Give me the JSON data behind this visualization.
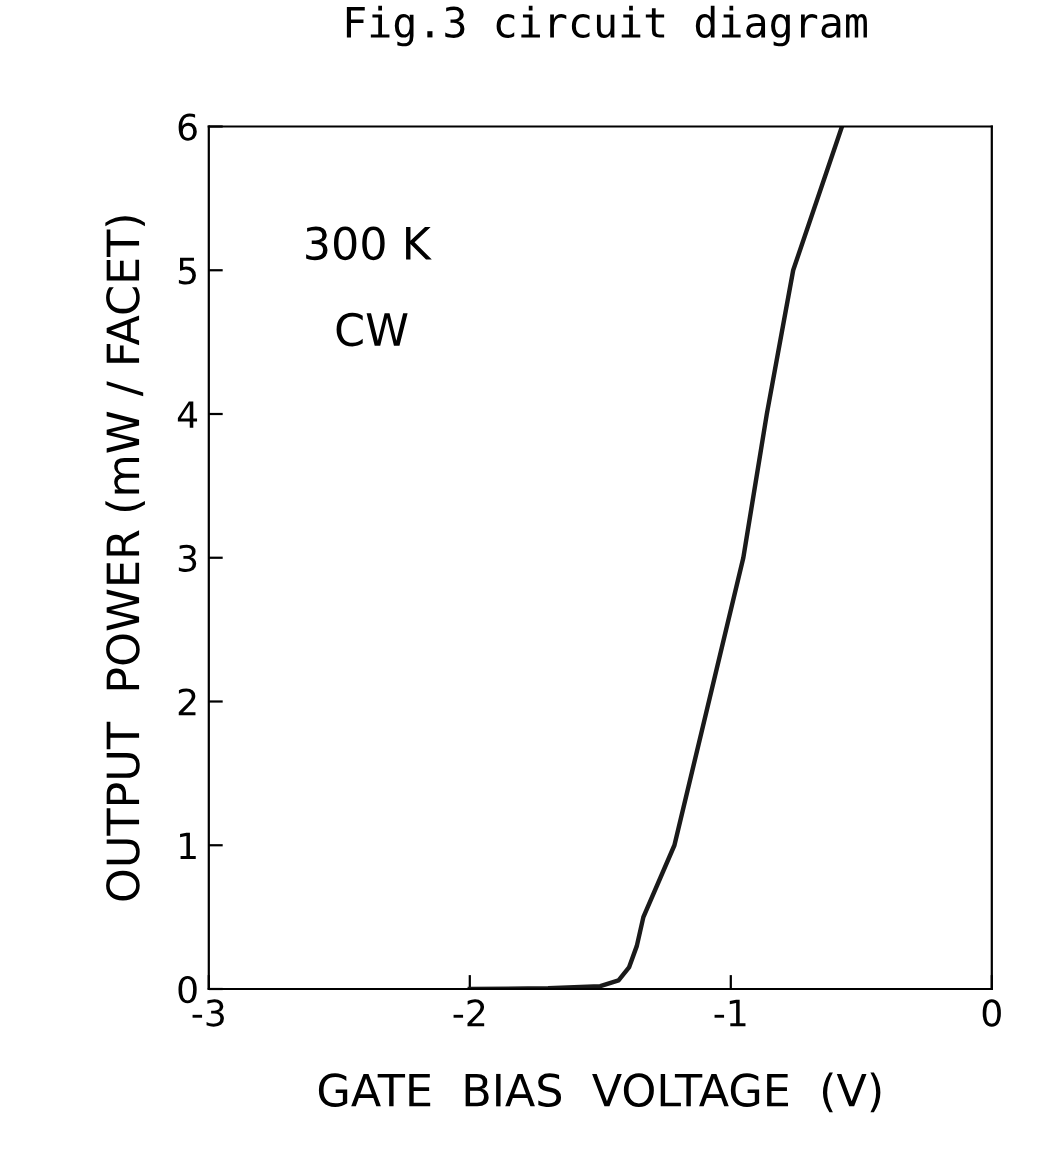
{
  "chart_data": {
    "type": "line",
    "xlabel": "GATE  BIAS  VOLTAGE  (V)",
    "ylabel": "OUTPUT  POWER (mW / FACET)",
    "annotations": [
      "Fig.3 circuit diagram",
      "300 K",
      "CW"
    ],
    "x": [
      -2.0,
      -1.7,
      -1.5,
      -1.43,
      -1.39,
      -1.36,
      -1.335,
      -1.216,
      -1.084,
      -0.952,
      -0.862,
      -0.761,
      -0.574
    ],
    "series": [
      {
        "color": "#1a1a1a",
        "values": [
          0,
          0.005,
          0.02,
          0.06,
          0.15,
          0.3,
          0.5,
          1,
          2,
          3,
          4,
          5,
          6
        ]
      }
    ],
    "xlim": [
      -3,
      0
    ],
    "ylim": [
      0,
      6
    ],
    "xticks": [
      -3,
      -2,
      -1,
      0
    ],
    "yticks": [
      0,
      1,
      2,
      3,
      4,
      5,
      6
    ],
    "grid": false,
    "legend": false,
    "marker": "none",
    "line_style": "solid"
  }
}
